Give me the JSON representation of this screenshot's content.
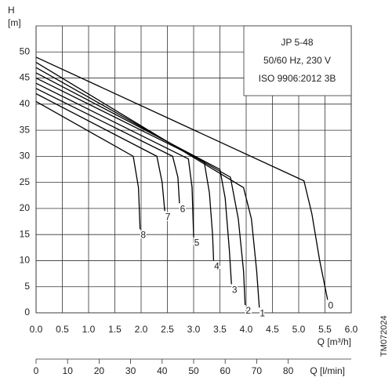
{
  "chart_data": {
    "type": "line",
    "y_label_symbol": "H",
    "y_label_unit": "[m]",
    "x_label": "Q [m³/h]",
    "x2_label": "Q [l/min]",
    "legend_lines": [
      "JP 5-48",
      "50/60 Hz, 230 V",
      "ISO 9906:2012 3B"
    ],
    "figure_code": "TM072024",
    "xlim": [
      0,
      6
    ],
    "xticks": [
      {
        "value": 0,
        "label": "0.0"
      },
      {
        "value": 0.5,
        "label": "0.5"
      },
      {
        "value": 1,
        "label": "1.0"
      },
      {
        "value": 1.5,
        "label": "1.5"
      },
      {
        "value": 2,
        "label": "2.0"
      },
      {
        "value": 2.5,
        "label": "2.5"
      },
      {
        "value": 3,
        "label": "3.0"
      },
      {
        "value": 3.5,
        "label": "3.5"
      },
      {
        "value": 4,
        "label": "4.0"
      },
      {
        "value": 4.5,
        "label": "4.5"
      },
      {
        "value": 5,
        "label": "5.0"
      },
      {
        "value": 5.5,
        "label": "5.5"
      },
      {
        "value": 6,
        "label": "6.0"
      }
    ],
    "ylim": [
      0,
      55
    ],
    "yticks": [
      0,
      5,
      10,
      15,
      20,
      25,
      30,
      35,
      40,
      45,
      50
    ],
    "x2lim": [
      0,
      100
    ],
    "x2ticks": [
      0,
      10,
      20,
      30,
      40,
      50,
      60,
      70,
      80
    ],
    "grid": true,
    "series": [
      {
        "name": "0",
        "color": "#000000",
        "x": [
          0,
          5.1,
          5.25,
          5.4,
          5.55
        ],
        "values": [
          49,
          25.3,
          19,
          10,
          2.5
        ]
      },
      {
        "name": "1",
        "color": "#000000",
        "x": [
          0,
          3.95,
          4.1,
          4.2,
          4.25
        ],
        "values": [
          48,
          24,
          18,
          8,
          1
        ]
      },
      {
        "name": "2",
        "color": "#000000",
        "x": [
          0,
          3.7,
          3.85,
          3.95,
          3.98
        ],
        "values": [
          47,
          26,
          18,
          8,
          1.5
        ]
      },
      {
        "name": "3",
        "color": "#000000",
        "x": [
          0,
          3.5,
          3.6,
          3.68,
          3.72
        ],
        "values": [
          46,
          27.5,
          22,
          12,
          5.5
        ]
      },
      {
        "name": "4",
        "color": "#000000",
        "x": [
          0,
          3.2,
          3.3,
          3.36,
          3.38
        ],
        "values": [
          45,
          29,
          23,
          15,
          10
        ]
      },
      {
        "name": "5",
        "color": "#000000",
        "x": [
          0,
          2.9,
          2.97,
          3.0
        ],
        "values": [
          44,
          29.5,
          24,
          14.5
        ]
      },
      {
        "name": "6",
        "color": "#000000",
        "x": [
          0,
          2.6,
          2.7,
          2.73
        ],
        "values": [
          43,
          30,
          26,
          21
        ]
      },
      {
        "name": "7",
        "color": "#000000",
        "x": [
          0,
          2.3,
          2.4,
          2.45
        ],
        "values": [
          42,
          30,
          25,
          19.5
        ]
      },
      {
        "name": "8",
        "color": "#000000",
        "x": [
          0,
          1.85,
          1.95,
          1.98
        ],
        "values": [
          40.5,
          30,
          24,
          16
        ]
      }
    ]
  }
}
